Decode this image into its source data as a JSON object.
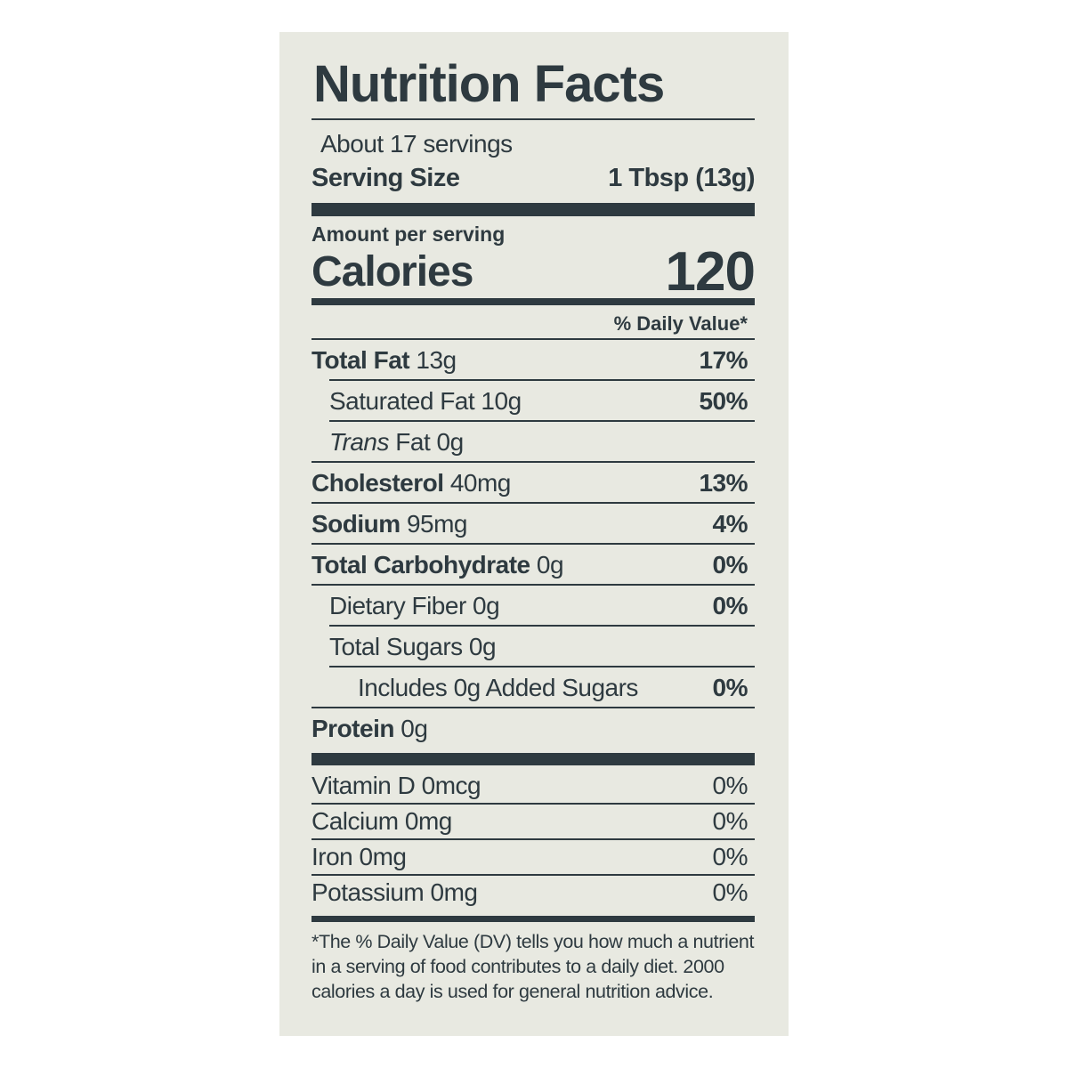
{
  "title": "Nutrition Facts",
  "servings": "About 17 servings",
  "serving_size": {
    "label": "Serving Size",
    "value": "1 Tbsp (13g)"
  },
  "amount_per_serving": "Amount per serving",
  "calories": {
    "label": "Calories",
    "value": "120"
  },
  "dv_header": "% Daily Value*",
  "nutrients": [
    {
      "name": "Total Fat",
      "amount": "13g",
      "dv": "17%"
    },
    {
      "name": "Saturated Fat 10g",
      "dv": "50%"
    },
    {
      "name_italic": "Trans",
      "name": "Fat 0g"
    },
    {
      "name": "Cholesterol",
      "amount": "40mg",
      "dv": "13%"
    },
    {
      "name": "Sodium",
      "amount": "95mg",
      "dv": "4%"
    },
    {
      "name": "Total Carbohydrate",
      "amount": "0g",
      "dv": "0%"
    },
    {
      "name": "Dietary Fiber 0g",
      "dv": "0%"
    },
    {
      "name": "Total Sugars 0g"
    },
    {
      "name": "Includes 0g Added Sugars",
      "dv": "0%"
    },
    {
      "name": "Protein",
      "amount": "0g"
    }
  ],
  "vitamins": [
    {
      "name": "Vitamin D 0mcg",
      "dv": "0%"
    },
    {
      "name": "Calcium 0mg",
      "dv": "0%"
    },
    {
      "name": "Iron 0mg",
      "dv": "0%"
    },
    {
      "name": "Potassium 0mg",
      "dv": "0%"
    }
  ],
  "footnote": "*The % Daily Value (DV) tells you how much a nutrient in a serving of food contributes to a daily diet. 2000 calories a day is used for general nutrition advice."
}
